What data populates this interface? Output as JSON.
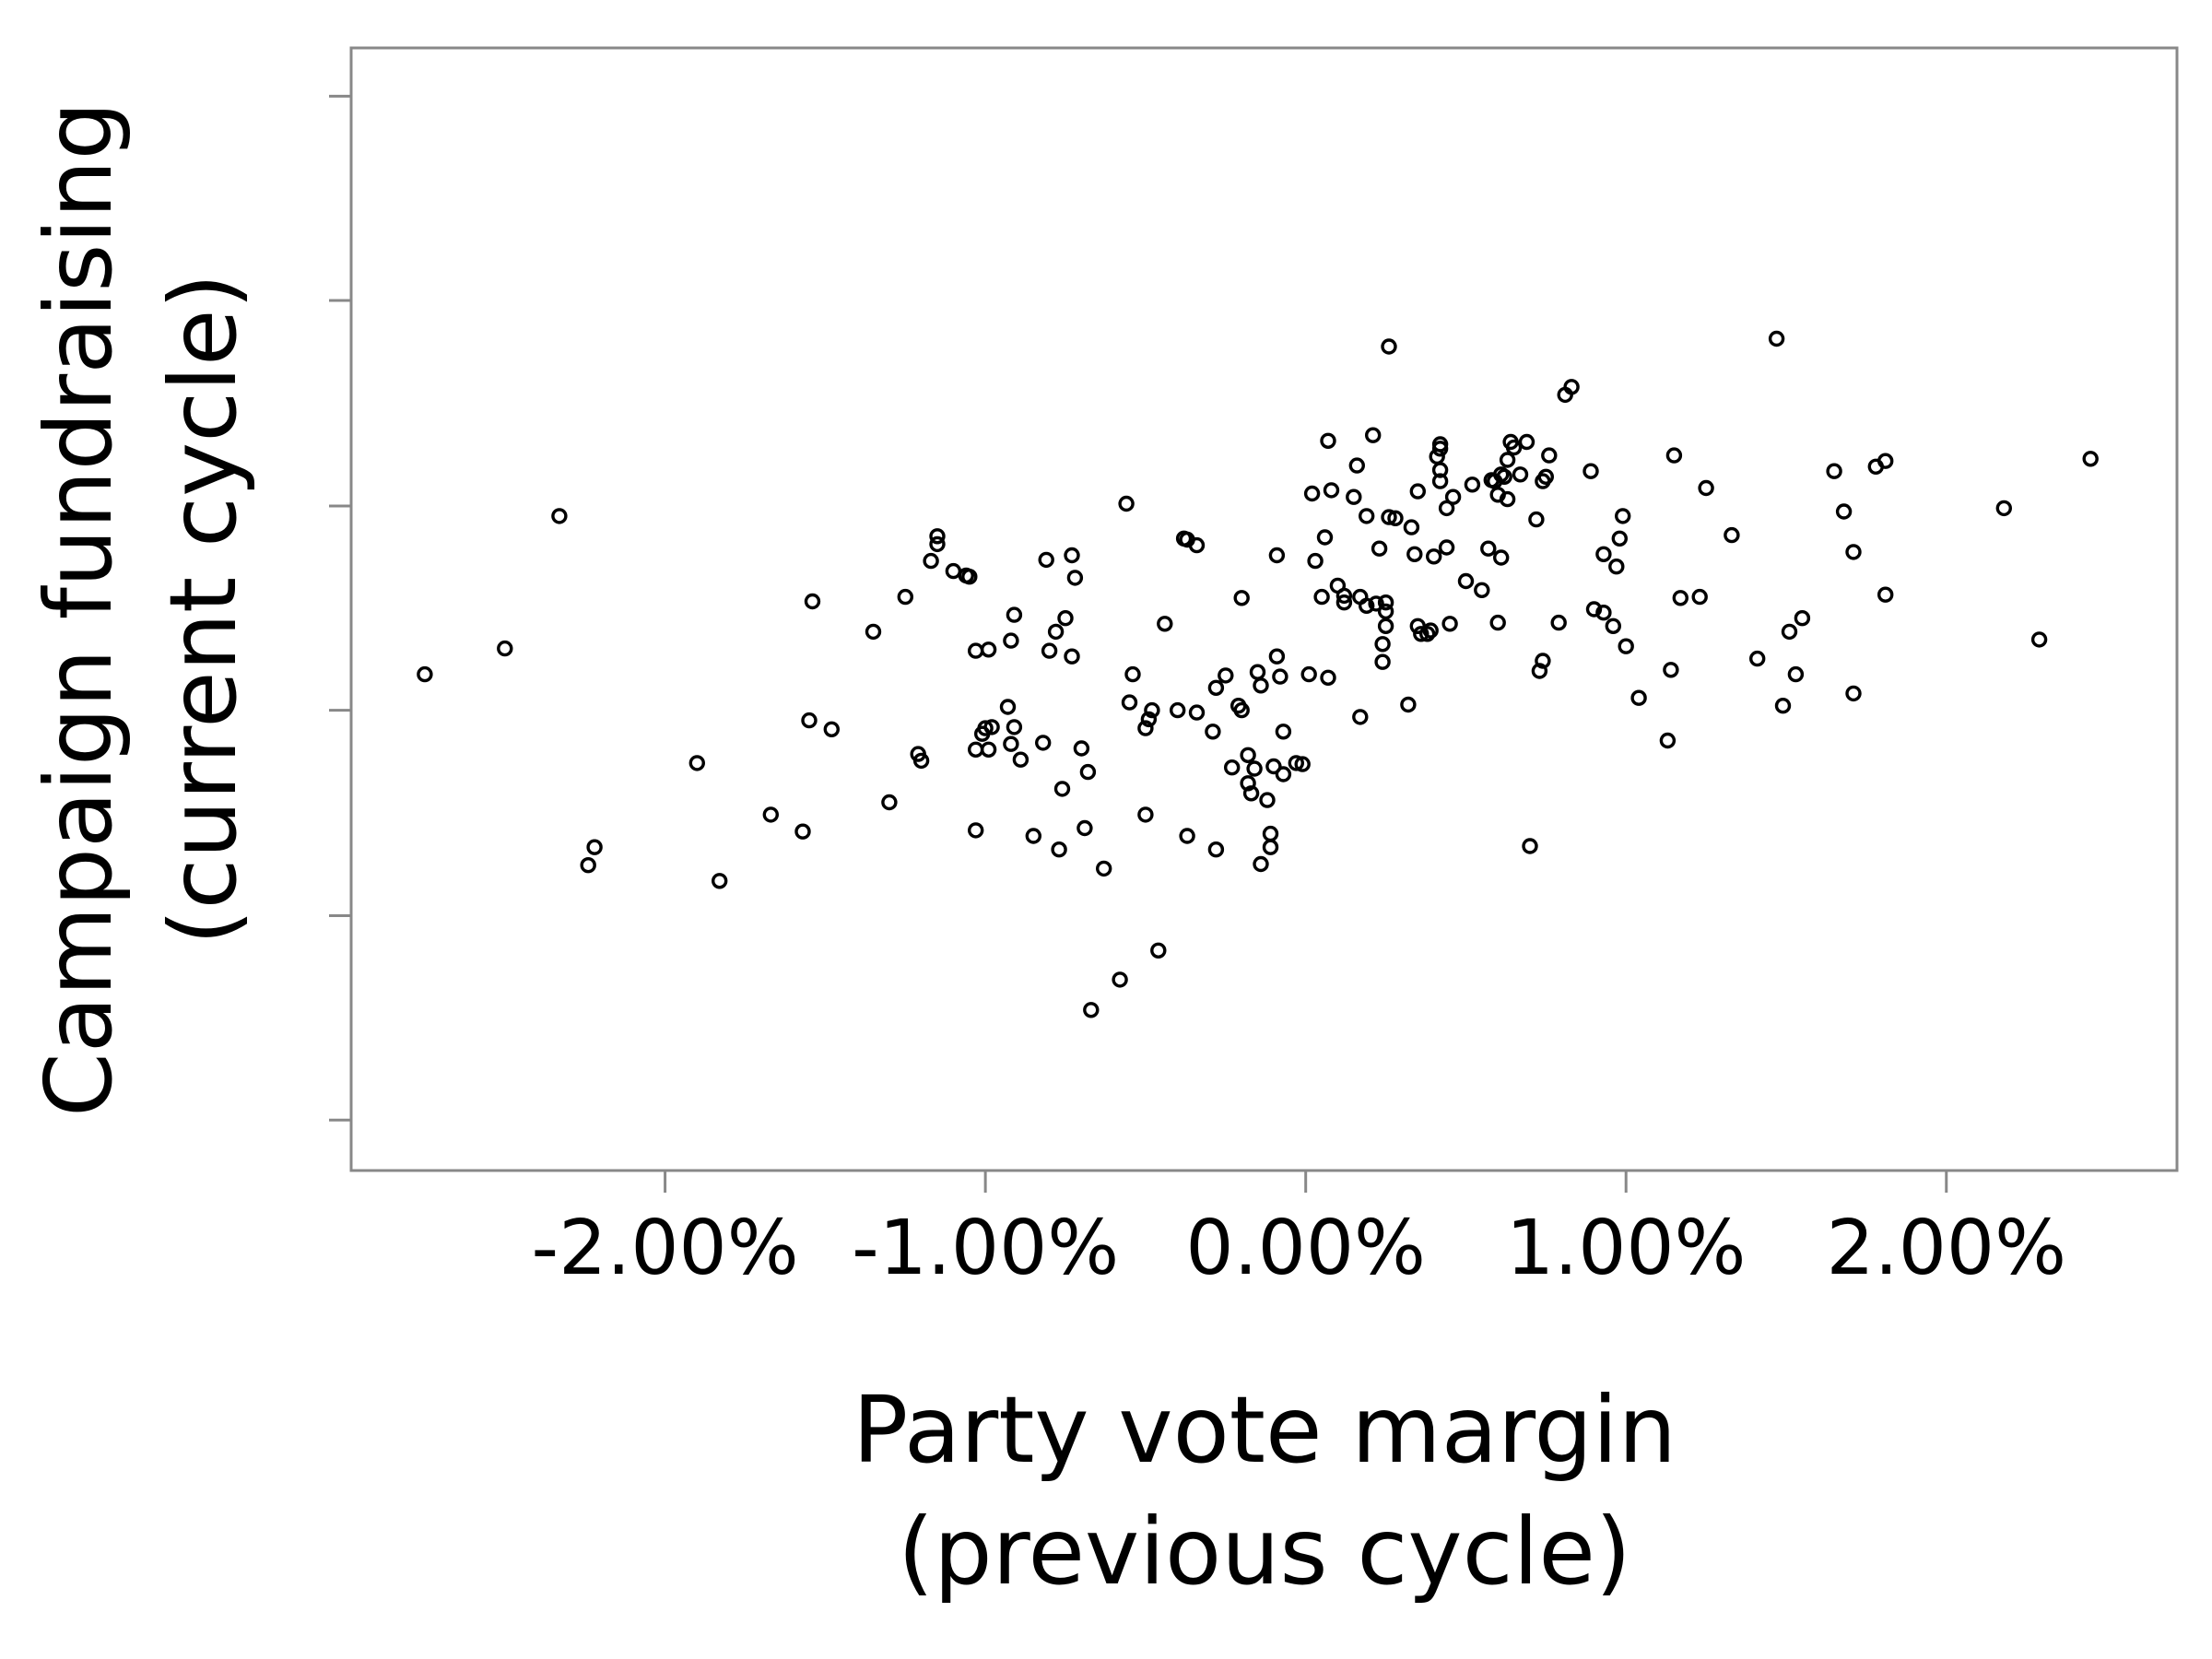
{
  "chart_data": {
    "type": "scatter",
    "title": "",
    "xlabel": [
      "Party vote margin",
      "(previous cycle)"
    ],
    "ylabel": [
      "Campaign fundraising",
      "(current cycle)"
    ],
    "x_unit": "percent",
    "xlim": [
      -2.98,
      2.72
    ],
    "ylim": [
      0,
      100
    ],
    "x_ticks": [
      -2.0,
      -1.0,
      0.0,
      1.0,
      2.0
    ],
    "x_tick_labels": [
      "-2.00%",
      "-1.00%",
      "0.00%",
      "1.00%",
      "2.00%"
    ],
    "y_ticks": [
      4.5,
      22.7,
      41.0,
      59.2,
      77.5,
      95.7
    ],
    "y_tick_labels": [],
    "grid": false,
    "legend": "none",
    "marker": "hollow-circle",
    "marker_color": "#000000",
    "frame_color": "#888888",
    "points": [
      [
        -2.75,
        44.2
      ],
      [
        -2.5,
        46.5
      ],
      [
        -2.33,
        58.3
      ],
      [
        -2.22,
        28.8
      ],
      [
        -2.24,
        27.2
      ],
      [
        -1.9,
        36.3
      ],
      [
        -1.83,
        25.8
      ],
      [
        -1.67,
        31.7
      ],
      [
        -1.57,
        30.2
      ],
      [
        -1.55,
        40.1
      ],
      [
        -1.54,
        50.7
      ],
      [
        -1.48,
        39.3
      ],
      [
        -1.35,
        48.0
      ],
      [
        -1.3,
        32.8
      ],
      [
        -1.25,
        51.1
      ],
      [
        -1.21,
        37.1
      ],
      [
        -1.2,
        36.5
      ],
      [
        -1.17,
        54.3
      ],
      [
        -1.15,
        56.5
      ],
      [
        -1.15,
        55.8
      ],
      [
        -1.1,
        53.4
      ],
      [
        -1.06,
        53.0
      ],
      [
        -1.05,
        52.9
      ],
      [
        -1.03,
        46.3
      ],
      [
        -1.03,
        37.5
      ],
      [
        -1.03,
        30.3
      ],
      [
        -1.01,
        38.9
      ],
      [
        -1.0,
        39.4
      ],
      [
        -0.99,
        46.4
      ],
      [
        -0.99,
        37.5
      ],
      [
        -0.98,
        39.5
      ],
      [
        -0.93,
        41.3
      ],
      [
        -0.92,
        47.2
      ],
      [
        -0.92,
        38.0
      ],
      [
        -0.91,
        49.5
      ],
      [
        -0.91,
        39.5
      ],
      [
        -0.89,
        36.6
      ],
      [
        -0.85,
        29.8
      ],
      [
        -0.82,
        38.1
      ],
      [
        -0.81,
        54.4
      ],
      [
        -0.8,
        46.3
      ],
      [
        -0.78,
        48.0
      ],
      [
        -0.77,
        28.6
      ],
      [
        -0.76,
        34.0
      ],
      [
        -0.75,
        49.2
      ],
      [
        -0.73,
        45.8
      ],
      [
        -0.73,
        54.8
      ],
      [
        -0.72,
        52.8
      ],
      [
        -0.7,
        37.6
      ],
      [
        -0.69,
        30.5
      ],
      [
        -0.68,
        35.5
      ],
      [
        -0.67,
        14.3
      ],
      [
        -0.63,
        26.9
      ],
      [
        -0.58,
        17.0
      ],
      [
        -0.56,
        59.4
      ],
      [
        -0.55,
        41.7
      ],
      [
        -0.54,
        44.2
      ],
      [
        -0.5,
        31.7
      ],
      [
        -0.5,
        39.4
      ],
      [
        -0.49,
        40.2
      ],
      [
        -0.48,
        41.0
      ],
      [
        -0.46,
        19.6
      ],
      [
        -0.44,
        48.7
      ],
      [
        -0.4,
        41.0
      ],
      [
        -0.38,
        56.3
      ],
      [
        -0.37,
        56.2
      ],
      [
        -0.37,
        29.8
      ],
      [
        -0.34,
        55.7
      ],
      [
        -0.34,
        40.8
      ],
      [
        -0.29,
        39.1
      ],
      [
        -0.28,
        43.0
      ],
      [
        -0.28,
        28.6
      ],
      [
        -0.25,
        44.1
      ],
      [
        -0.23,
        35.9
      ],
      [
        -0.21,
        41.4
      ],
      [
        -0.2,
        41.0
      ],
      [
        -0.2,
        51.0
      ],
      [
        -0.18,
        37.0
      ],
      [
        -0.18,
        34.5
      ],
      [
        -0.17,
        33.6
      ],
      [
        -0.16,
        35.8
      ],
      [
        -0.15,
        44.4
      ],
      [
        -0.14,
        43.2
      ],
      [
        -0.14,
        27.3
      ],
      [
        -0.12,
        33.0
      ],
      [
        -0.11,
        28.8
      ],
      [
        -0.11,
        30.0
      ],
      [
        -0.1,
        36.0
      ],
      [
        -0.09,
        45.8
      ],
      [
        -0.09,
        54.8
      ],
      [
        -0.08,
        44.0
      ],
      [
        -0.07,
        39.1
      ],
      [
        -0.07,
        35.3
      ],
      [
        -0.03,
        36.3
      ],
      [
        -0.01,
        36.2
      ],
      [
        0.01,
        44.2
      ],
      [
        0.02,
        60.3
      ],
      [
        0.03,
        54.3
      ],
      [
        0.05,
        51.1
      ],
      [
        0.06,
        56.4
      ],
      [
        0.07,
        65.0
      ],
      [
        0.07,
        43.9
      ],
      [
        0.08,
        60.6
      ],
      [
        0.1,
        52.1
      ],
      [
        0.12,
        51.2
      ],
      [
        0.12,
        50.6
      ],
      [
        0.15,
        60.0
      ],
      [
        0.16,
        62.8
      ],
      [
        0.17,
        51.1
      ],
      [
        0.17,
        40.4
      ],
      [
        0.19,
        58.3
      ],
      [
        0.19,
        50.3
      ],
      [
        0.21,
        65.5
      ],
      [
        0.22,
        50.5
      ],
      [
        0.23,
        55.4
      ],
      [
        0.24,
        46.9
      ],
      [
        0.24,
        45.3
      ],
      [
        0.25,
        48.5
      ],
      [
        0.25,
        50.6
      ],
      [
        0.25,
        49.8
      ],
      [
        0.26,
        58.2
      ],
      [
        0.26,
        73.4
      ],
      [
        0.28,
        58.1
      ],
      [
        0.32,
        41.5
      ],
      [
        0.33,
        57.3
      ],
      [
        0.34,
        54.9
      ],
      [
        0.35,
        60.5
      ],
      [
        0.35,
        48.5
      ],
      [
        0.36,
        47.8
      ],
      [
        0.38,
        47.8
      ],
      [
        0.39,
        48.1
      ],
      [
        0.4,
        54.7
      ],
      [
        0.41,
        63.6
      ],
      [
        0.42,
        62.4
      ],
      [
        0.42,
        64.3
      ],
      [
        0.42,
        64.7
      ],
      [
        0.42,
        61.4
      ],
      [
        0.44,
        55.5
      ],
      [
        0.44,
        59.0
      ],
      [
        0.45,
        48.7
      ],
      [
        0.46,
        60.0
      ],
      [
        0.5,
        52.5
      ],
      [
        0.52,
        61.1
      ],
      [
        0.55,
        51.7
      ],
      [
        0.57,
        55.4
      ],
      [
        0.58,
        61.5
      ],
      [
        0.59,
        61.4
      ],
      [
        0.6,
        60.2
      ],
      [
        0.6,
        48.8
      ],
      [
        0.61,
        54.6
      ],
      [
        0.61,
        62.0
      ],
      [
        0.62,
        61.8
      ],
      [
        0.63,
        59.8
      ],
      [
        0.63,
        63.3
      ],
      [
        0.64,
        64.9
      ],
      [
        0.65,
        64.4
      ],
      [
        0.67,
        62.0
      ],
      [
        0.69,
        64.9
      ],
      [
        0.7,
        28.9
      ],
      [
        0.72,
        58.0
      ],
      [
        0.73,
        44.5
      ],
      [
        0.74,
        45.4
      ],
      [
        0.74,
        61.4
      ],
      [
        0.75,
        61.8
      ],
      [
        0.76,
        63.7
      ],
      [
        0.79,
        48.8
      ],
      [
        0.81,
        69.1
      ],
      [
        0.83,
        69.8
      ],
      [
        0.89,
        62.3
      ],
      [
        0.9,
        50.0
      ],
      [
        0.93,
        49.7
      ],
      [
        0.93,
        54.9
      ],
      [
        0.96,
        48.5
      ],
      [
        0.97,
        53.8
      ],
      [
        0.98,
        56.3
      ],
      [
        0.99,
        58.3
      ],
      [
        1.0,
        46.7
      ],
      [
        1.04,
        42.1
      ],
      [
        1.13,
        38.3
      ],
      [
        1.14,
        44.6
      ],
      [
        1.15,
        63.7
      ],
      [
        1.17,
        51.0
      ],
      [
        1.23,
        51.1
      ],
      [
        1.25,
        60.8
      ],
      [
        1.33,
        56.6
      ],
      [
        1.41,
        45.6
      ],
      [
        1.47,
        74.1
      ],
      [
        1.49,
        41.4
      ],
      [
        1.51,
        48.0
      ],
      [
        1.53,
        44.2
      ],
      [
        1.55,
        49.2
      ],
      [
        1.65,
        62.3
      ],
      [
        1.68,
        58.7
      ],
      [
        1.71,
        55.1
      ],
      [
        1.71,
        42.5
      ],
      [
        1.78,
        62.7
      ],
      [
        1.81,
        63.2
      ],
      [
        1.81,
        51.3
      ],
      [
        2.18,
        59.0
      ],
      [
        2.29,
        47.3
      ],
      [
        2.45,
        63.4
      ]
    ]
  }
}
